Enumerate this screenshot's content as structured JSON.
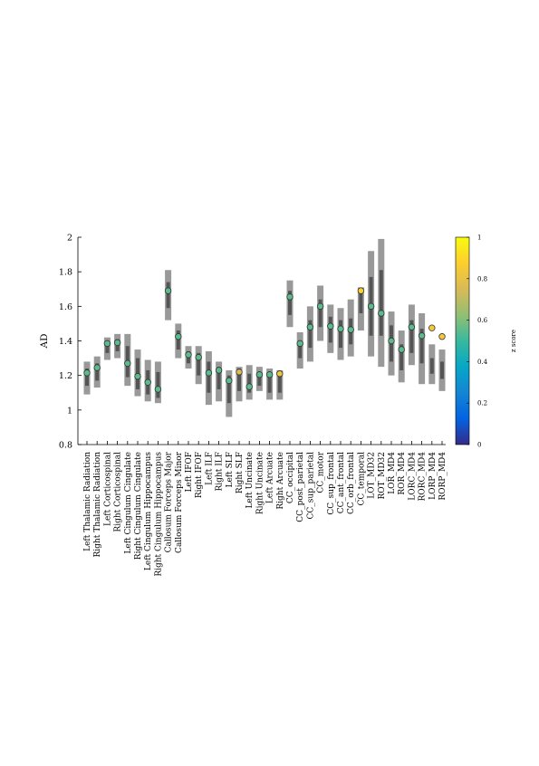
{
  "chart_data": {
    "type": "scatter",
    "ylabel": "AD",
    "ylim": [
      0.8,
      2.0
    ],
    "yticks": [
      0.8,
      1.0,
      1.2,
      1.4,
      1.6,
      1.8,
      2.0
    ],
    "ytick_labels": [
      "0.8",
      "1",
      "1.2",
      "1.4",
      "1.6",
      "1.8",
      "2"
    ],
    "categories": [
      "Left Thalamic Radiation",
      "Right Thalamic Radiation",
      "Left Corticospinal",
      "Right Corticospinal",
      "Left Cingulum Cingulate",
      "Right Cingulum Cingulate",
      "Left Cingulum Hippocampus",
      "Right Cingulum Hippocampus",
      "Callosum Forceps Major",
      "Callosum Forceps Minor",
      "Left IFOF",
      "Right IFOF",
      "Left ILF",
      "Right ILF",
      "Left SLF",
      "Right SLF",
      "Left Uncinate",
      "Right Uncinate",
      "Left Arcuate",
      "Right Arcuate",
      "CC_occipital",
      "CC_post_parietal",
      "CC_sup_parietal",
      "CC_motor",
      "CC_sup_frontal",
      "CC_ant_frontal",
      "CC_orb_frontal",
      "CC_temporal",
      "LOT_MD32",
      "ROT_MD32",
      "LOR_MD4",
      "ROR_MD4",
      "LORC_MD4",
      "RORC_MD4",
      "LORP_MD4",
      "RORP_MD4"
    ],
    "series": [
      {
        "values": [
          1.215,
          1.245,
          1.385,
          1.39,
          1.27,
          1.195,
          1.16,
          1.12,
          1.69,
          1.425,
          1.32,
          1.305,
          1.215,
          1.23,
          1.17,
          1.22,
          1.135,
          1.205,
          1.205,
          1.21,
          1.655,
          1.385,
          1.48,
          1.6,
          1.485,
          1.47,
          1.465,
          1.69,
          1.6,
          1.56,
          1.4,
          1.35,
          1.48,
          1.43,
          1.475,
          1.425
        ],
        "z": [
          0.55,
          0.55,
          0.55,
          0.55,
          0.55,
          0.55,
          0.55,
          0.55,
          0.55,
          0.55,
          0.55,
          0.55,
          0.55,
          0.55,
          0.55,
          0.75,
          0.55,
          0.55,
          0.55,
          0.82,
          0.55,
          0.55,
          0.55,
          0.55,
          0.55,
          0.55,
          0.55,
          0.88,
          0.55,
          0.55,
          0.55,
          0.55,
          0.55,
          0.55,
          0.85,
          0.85
        ],
        "outer_low": [
          1.09,
          1.13,
          1.29,
          1.3,
          1.14,
          1.08,
          1.05,
          1.04,
          1.52,
          1.3,
          1.24,
          1.15,
          1.03,
          1.05,
          0.96,
          1.05,
          1.06,
          1.11,
          1.06,
          1.06,
          1.48,
          1.24,
          1.28,
          1.4,
          1.33,
          1.29,
          1.31,
          1.46,
          1.31,
          1.25,
          1.2,
          1.16,
          1.26,
          1.15,
          1.15,
          1.11
        ],
        "outer_high": [
          1.28,
          1.31,
          1.42,
          1.44,
          1.44,
          1.35,
          1.29,
          1.28,
          1.81,
          1.5,
          1.37,
          1.37,
          1.34,
          1.28,
          1.23,
          1.25,
          1.26,
          1.25,
          1.24,
          1.23,
          1.75,
          1.45,
          1.6,
          1.72,
          1.61,
          1.59,
          1.64,
          1.71,
          1.92,
          1.99,
          1.57,
          1.46,
          1.61,
          1.56,
          1.38,
          1.35
        ],
        "inner_low": [
          1.14,
          1.17,
          1.33,
          1.34,
          1.19,
          1.12,
          1.09,
          1.07,
          1.59,
          1.35,
          1.27,
          1.2,
          1.1,
          1.12,
          1.04,
          1.11,
          1.1,
          1.14,
          1.1,
          1.1,
          1.55,
          1.3,
          1.36,
          1.48,
          1.39,
          1.36,
          1.38,
          1.56,
          1.43,
          1.43,
          1.28,
          1.23,
          1.33,
          1.27,
          1.21,
          1.18
        ],
        "inner_high": [
          1.24,
          1.27,
          1.4,
          1.41,
          1.37,
          1.3,
          1.23,
          1.22,
          1.74,
          1.46,
          1.34,
          1.33,
          1.28,
          1.25,
          1.2,
          1.24,
          1.21,
          1.22,
          1.21,
          1.2,
          1.69,
          1.4,
          1.52,
          1.64,
          1.54,
          1.52,
          1.53,
          1.69,
          1.77,
          1.81,
          1.49,
          1.38,
          1.52,
          1.47,
          1.3,
          1.28
        ]
      }
    ],
    "colorbar": {
      "label": "z score",
      "range": [
        0,
        1
      ],
      "ticks": [
        0,
        0.2,
        0.4,
        0.6,
        0.8,
        1
      ],
      "tick_labels": [
        "0",
        "0.2",
        "0.4",
        "0.6",
        "0.8",
        "1"
      ],
      "colormap": [
        "#352a87",
        "#0363e1",
        "#1485d4",
        "#06a7c6",
        "#38b99e",
        "#92bf73",
        "#d9ba56",
        "#fcce2e",
        "#f9fb0e"
      ]
    },
    "colors": {
      "outer_bar": "#999999",
      "inner_bar": "#555555",
      "marker_edge": "#333333"
    },
    "grid": false,
    "legend": "none"
  }
}
